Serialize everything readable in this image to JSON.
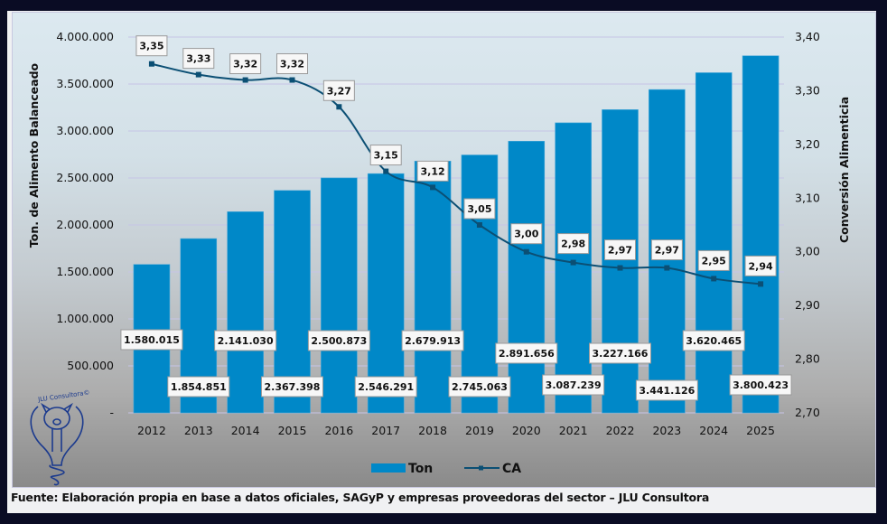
{
  "chart_data": {
    "type": "bar+line",
    "title": "",
    "categories": [
      "2012",
      "2013",
      "2014",
      "2015",
      "2016",
      "2017",
      "2018",
      "2019",
      "2020",
      "2021",
      "2022",
      "2023",
      "2024",
      "2025"
    ],
    "series": [
      {
        "name": "Ton",
        "type": "bar",
        "axis": "left",
        "color": "#0088c8",
        "values": [
          1580015,
          1854851,
          2141030,
          2367398,
          2500873,
          2546291,
          2679913,
          2745063,
          2891656,
          3087239,
          3227166,
          3441126,
          3620465,
          3800423
        ],
        "labels": [
          "1.580.015",
          "1.854.851",
          "2.141.030",
          "2.367.398",
          "2.500.873",
          "2.546.291",
          "2.679.913",
          "2.745.063",
          "2.891.656",
          "3.087.239",
          "3.227.166",
          "3.441.126",
          "3.620.465",
          "3.800.423"
        ]
      },
      {
        "name": "CA",
        "type": "line",
        "axis": "right",
        "color": "#0b4f74",
        "values": [
          3.35,
          3.33,
          3.32,
          3.32,
          3.27,
          3.15,
          3.12,
          3.05,
          3.0,
          2.98,
          2.97,
          2.97,
          2.95,
          2.94
        ],
        "labels": [
          "3,35",
          "3,33",
          "3,32",
          "3,32",
          "3,27",
          "3,15",
          "3,12",
          "3,05",
          "3,00",
          "2,98",
          "2,97",
          "2,97",
          "2,95",
          "2,94"
        ]
      }
    ],
    "ylabel": "Ton. de Alimento Balanceado",
    "y2label": "Conversión Alimenticia",
    "ylim": [
      0,
      4000000
    ],
    "y2lim": [
      2.7,
      3.4
    ],
    "yticks": [
      "-",
      "500.000",
      "1.000.000",
      "1.500.000",
      "2.000.000",
      "2.500.000",
      "3.000.000",
      "3.500.000",
      "4.000.000"
    ],
    "y2ticks": [
      "2,70",
      "2,80",
      "2,90",
      "3,00",
      "3,10",
      "3,20",
      "3,30",
      "3,40"
    ],
    "grid": true,
    "legend": {
      "placement": "bottom",
      "entries": [
        "Ton",
        "CA"
      ]
    }
  },
  "logo": {
    "text": "JLU Consultora©"
  },
  "source": "Fuente: Elaboración propia en base a datos oficiales, SAGyP y empresas proveedoras del sector – JLU Consultora"
}
